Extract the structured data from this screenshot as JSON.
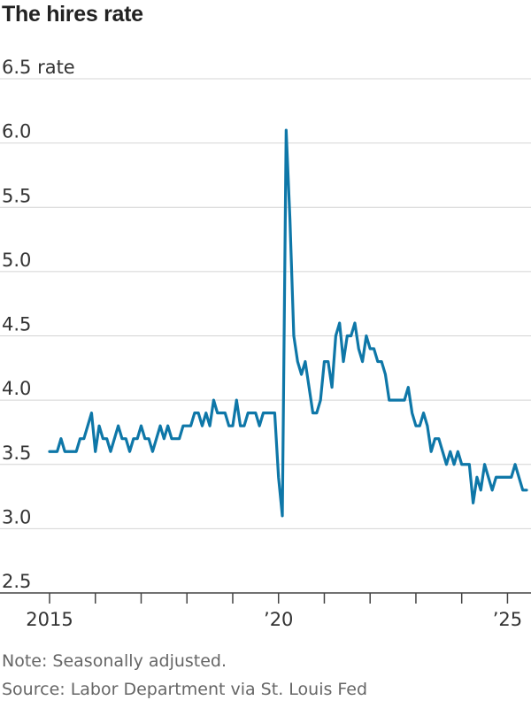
{
  "chart_data": {
    "type": "line",
    "title": "The hires rate",
    "ylabel_unit": "rate",
    "ylim": [
      2.5,
      6.5
    ],
    "y_ticks": [
      {
        "value": 6.5,
        "label": "6.5"
      },
      {
        "value": 6.0,
        "label": "6.0"
      },
      {
        "value": 5.5,
        "label": "5.5"
      },
      {
        "value": 5.0,
        "label": "5.0"
      },
      {
        "value": 4.5,
        "label": "4.5"
      },
      {
        "value": 4.0,
        "label": "4.0"
      },
      {
        "value": 3.5,
        "label": "3.5"
      },
      {
        "value": 3.0,
        "label": "3.0"
      },
      {
        "value": 2.5,
        "label": "2.5"
      }
    ],
    "x_start": "2015-01",
    "x_end": "2025-06",
    "x_ticks": [
      {
        "value": "2015",
        "label": "2015"
      },
      {
        "value": "2016",
        "label": ""
      },
      {
        "value": "2017",
        "label": ""
      },
      {
        "value": "2018",
        "label": ""
      },
      {
        "value": "2019",
        "label": ""
      },
      {
        "value": "2020",
        "label": "’20"
      },
      {
        "value": "2021",
        "label": ""
      },
      {
        "value": "2022",
        "label": ""
      },
      {
        "value": "2023",
        "label": ""
      },
      {
        "value": "2024",
        "label": ""
      },
      {
        "value": "2025",
        "label": "’25"
      }
    ],
    "grid": true,
    "line_color": "#0e77a8",
    "series": [
      {
        "x": [
          "2015-01",
          "2015-02",
          "2015-03",
          "2015-04",
          "2015-05",
          "2015-06",
          "2015-07",
          "2015-08",
          "2015-09",
          "2015-10",
          "2015-11",
          "2015-12",
          "2016-01",
          "2016-02",
          "2016-03",
          "2016-04",
          "2016-05",
          "2016-06",
          "2016-07",
          "2016-08",
          "2016-09",
          "2016-10",
          "2016-11",
          "2016-12",
          "2017-01",
          "2017-02",
          "2017-03",
          "2017-04",
          "2017-05",
          "2017-06",
          "2017-07",
          "2017-08",
          "2017-09",
          "2017-10",
          "2017-11",
          "2017-12",
          "2018-01",
          "2018-02",
          "2018-03",
          "2018-04",
          "2018-05",
          "2018-06",
          "2018-07",
          "2018-08",
          "2018-09",
          "2018-10",
          "2018-11",
          "2018-12",
          "2019-01",
          "2019-02",
          "2019-03",
          "2019-04",
          "2019-05",
          "2019-06",
          "2019-07",
          "2019-08",
          "2019-09",
          "2019-10",
          "2019-11",
          "2019-12",
          "2020-01",
          "2020-02",
          "2020-03",
          "2020-04",
          "2020-05",
          "2020-06",
          "2020-07",
          "2020-08",
          "2020-09",
          "2020-10",
          "2020-11",
          "2020-12",
          "2021-01",
          "2021-02",
          "2021-03",
          "2021-04",
          "2021-05",
          "2021-06",
          "2021-07",
          "2021-08",
          "2021-09",
          "2021-10",
          "2021-11",
          "2021-12",
          "2022-01",
          "2022-02",
          "2022-03",
          "2022-04",
          "2022-05",
          "2022-06",
          "2022-07",
          "2022-08",
          "2022-09",
          "2022-10",
          "2022-11",
          "2022-12",
          "2023-01",
          "2023-02",
          "2023-03",
          "2023-04",
          "2023-05",
          "2023-06",
          "2023-07",
          "2023-08",
          "2023-09",
          "2023-10",
          "2023-11",
          "2023-12",
          "2024-01",
          "2024-02",
          "2024-03",
          "2024-04",
          "2024-05",
          "2024-06",
          "2024-07",
          "2024-08",
          "2024-09",
          "2024-10",
          "2024-11",
          "2024-12",
          "2025-01",
          "2025-02",
          "2025-03",
          "2025-04",
          "2025-05",
          "2025-06"
        ],
        "y": [
          3.6,
          3.6,
          3.6,
          3.7,
          3.6,
          3.6,
          3.6,
          3.6,
          3.7,
          3.7,
          3.8,
          3.9,
          3.6,
          3.8,
          3.7,
          3.7,
          3.6,
          3.7,
          3.8,
          3.7,
          3.7,
          3.6,
          3.7,
          3.7,
          3.8,
          3.7,
          3.7,
          3.6,
          3.7,
          3.8,
          3.7,
          3.8,
          3.7,
          3.7,
          3.7,
          3.8,
          3.8,
          3.8,
          3.9,
          3.9,
          3.8,
          3.9,
          3.8,
          4.0,
          3.9,
          3.9,
          3.9,
          3.8,
          3.8,
          4.0,
          3.8,
          3.8,
          3.9,
          3.9,
          3.9,
          3.8,
          3.9,
          3.9,
          3.9,
          3.9,
          3.4,
          3.1,
          6.1,
          5.4,
          4.5,
          4.3,
          4.2,
          4.3,
          4.1,
          3.9,
          3.9,
          4.0,
          4.3,
          4.3,
          4.1,
          4.5,
          4.6,
          4.3,
          4.5,
          4.5,
          4.6,
          4.4,
          4.3,
          4.5,
          4.4,
          4.4,
          4.3,
          4.3,
          4.2,
          4.0,
          4.0,
          4.0,
          4.0,
          4.0,
          4.1,
          3.9,
          3.8,
          3.8,
          3.9,
          3.8,
          3.6,
          3.7,
          3.7,
          3.6,
          3.5,
          3.6,
          3.5,
          3.6,
          3.5,
          3.5,
          3.5,
          3.2,
          3.4,
          3.3,
          3.5,
          3.4,
          3.3,
          3.4,
          3.4,
          3.4,
          3.4,
          3.4,
          3.5,
          3.4,
          3.3,
          3.3
        ]
      }
    ]
  },
  "notes": {
    "line1": "Note: Seasonally adjusted.",
    "line2": "Source: Labor Department via St. Louis Fed"
  }
}
